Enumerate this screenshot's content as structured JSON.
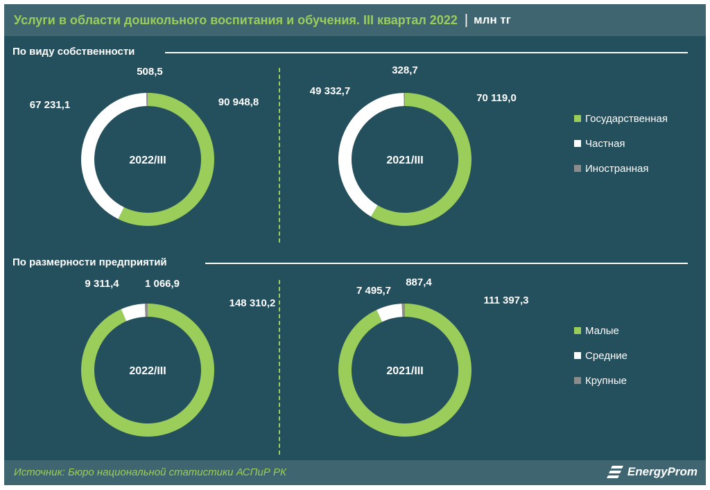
{
  "header": {
    "title": "Услуги в области дошкольного воспитания и обучения. III квартал 2022",
    "separator": "|",
    "unit": "млн тг"
  },
  "colors": {
    "background": "#244f5d",
    "bar": "#3f6670",
    "green": "#9acd5a",
    "white": "#ffffff",
    "gray": "#8c8c8c"
  },
  "sections": [
    {
      "title": "По виду собственности",
      "legend": [
        {
          "label": "Государственная",
          "color": "#9acd5a"
        },
        {
          "label": "Частная",
          "color": "#ffffff"
        },
        {
          "label": "Иностранная",
          "color": "#8c8c8c"
        }
      ]
    },
    {
      "title": "По размерности предприятий",
      "legend": [
        {
          "label": "Малые",
          "color": "#9acd5a"
        },
        {
          "label": "Средние",
          "color": "#ffffff"
        },
        {
          "label": "Крупные",
          "color": "#8c8c8c"
        }
      ]
    }
  ],
  "chart_data": [
    {
      "type": "pie",
      "center_label": "2022/III",
      "categories": [
        "Государственная",
        "Частная",
        "Иностранная"
      ],
      "values": [
        90948.8,
        67231.1,
        508.5
      ],
      "labels": [
        "90 948,8",
        "67 231,1",
        "508,5"
      ]
    },
    {
      "type": "pie",
      "center_label": "2021/III",
      "categories": [
        "Государственная",
        "Частная",
        "Иностранная"
      ],
      "values": [
        70119.0,
        49332.7,
        328.7
      ],
      "labels": [
        "70 119,0",
        "49 332,7",
        "328,7"
      ]
    },
    {
      "type": "pie",
      "center_label": "2022/III",
      "categories": [
        "Малые",
        "Средние",
        "Крупные"
      ],
      "values": [
        148310.2,
        9311.4,
        1066.9
      ],
      "labels": [
        "148 310,2",
        "9 311,4",
        "1 066,9"
      ]
    },
    {
      "type": "pie",
      "center_label": "2021/III",
      "categories": [
        "Малые",
        "Средние",
        "Крупные"
      ],
      "values": [
        111397.3,
        7495.7,
        887.4
      ],
      "labels": [
        "111 397,3",
        "7 495,7",
        "887,4"
      ]
    }
  ],
  "footer": {
    "source": "Источник: Бюро национальной статистики АСПиР РК",
    "logo_text": "EnergyProm"
  }
}
